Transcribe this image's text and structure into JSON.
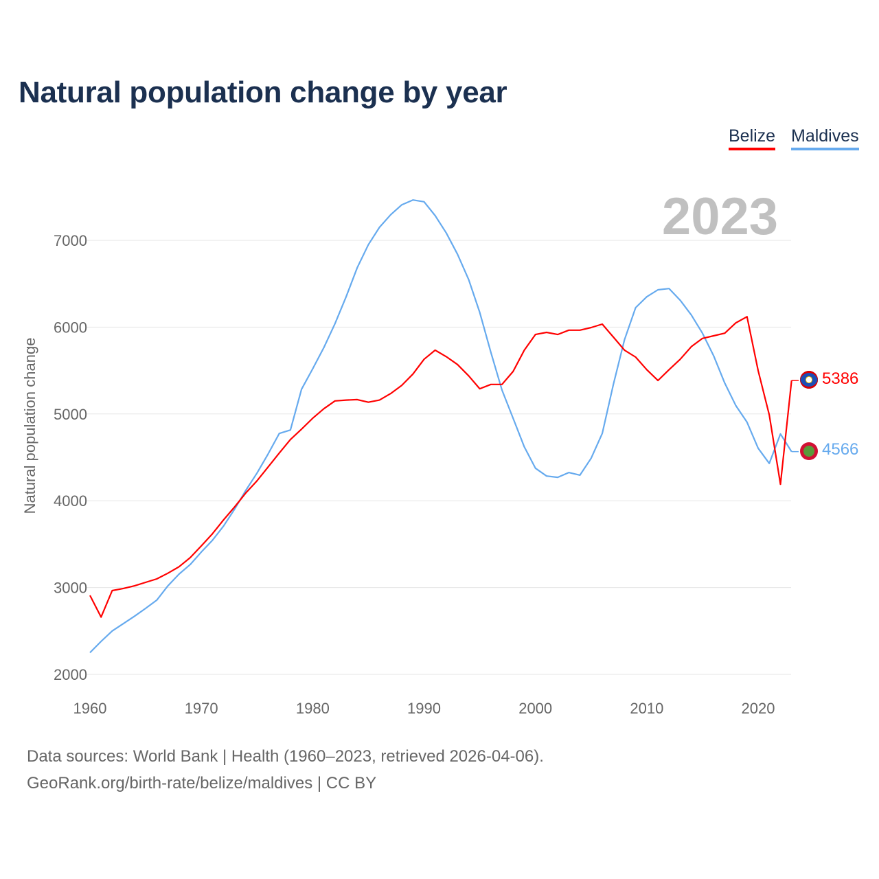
{
  "title": "Natural population change by year",
  "year_label": "2023",
  "footer": {
    "line1": "Data sources: World Bank | Health (1960–2023, retrieved 2026-04-06).",
    "line2": "GeoRank.org/birth-rate/belize/maldives | CC BY"
  },
  "chart_data": {
    "type": "line",
    "title": "Natural population change by year",
    "xlabel": "",
    "ylabel": "Natural population change",
    "xlim": [
      1960,
      2023
    ],
    "ylim": [
      2000,
      7500
    ],
    "xticks": [
      1960,
      1970,
      1980,
      1990,
      2000,
      2010,
      2020
    ],
    "yticks": [
      2000,
      3000,
      4000,
      5000,
      6000,
      7000
    ],
    "legend": "top-right",
    "grid": true,
    "x_start": 1960,
    "series": [
      {
        "name": "Belize",
        "color": "#ff0000",
        "end_label": "5386",
        "values": [
          2910,
          2660,
          2965,
          2990,
          3020,
          3060,
          3100,
          3165,
          3240,
          3345,
          3480,
          3620,
          3780,
          3930,
          4090,
          4230,
          4390,
          4550,
          4705,
          4825,
          4950,
          5060,
          5150,
          5160,
          5165,
          5135,
          5160,
          5235,
          5330,
          5460,
          5630,
          5735,
          5660,
          5570,
          5440,
          5290,
          5340,
          5340,
          5490,
          5735,
          5915,
          5940,
          5915,
          5965,
          5965,
          5995,
          6035,
          5885,
          5735,
          5655,
          5510,
          5385,
          5510,
          5630,
          5775,
          5870,
          5900,
          5930,
          6050,
          6120,
          5500,
          4990,
          4190,
          5386
        ]
      },
      {
        "name": "Maldives",
        "color": "#66aaee",
        "end_label": "4566",
        "values": [
          2250,
          2380,
          2500,
          2585,
          2670,
          2760,
          2855,
          3020,
          3155,
          3265,
          3410,
          3545,
          3710,
          3905,
          4120,
          4320,
          4540,
          4775,
          4815,
          5285,
          5520,
          5765,
          6040,
          6350,
          6685,
          6950,
          7150,
          7295,
          7410,
          7465,
          7445,
          7285,
          7085,
          6840,
          6550,
          6170,
          5710,
          5275,
          4950,
          4620,
          4375,
          4285,
          4270,
          4325,
          4295,
          4490,
          4775,
          5340,
          5855,
          6225,
          6350,
          6430,
          6445,
          6310,
          6140,
          5930,
          5670,
          5355,
          5095,
          4905,
          4605,
          4430,
          4770,
          4566
        ]
      }
    ]
  }
}
